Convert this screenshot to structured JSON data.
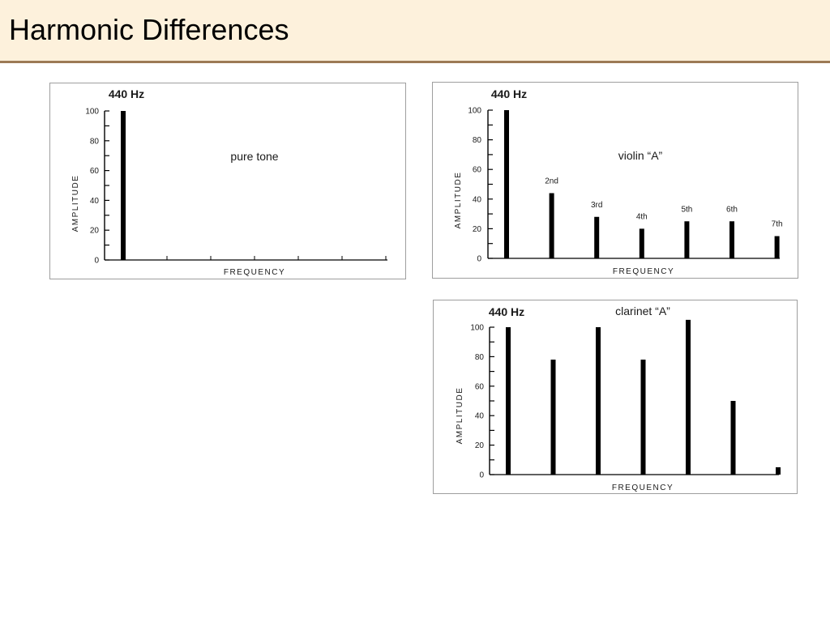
{
  "slide": {
    "title": "Harmonic Differences"
  },
  "colors": {
    "title_bg": "#fdf1dc",
    "title_rule": "#9c7a55",
    "ink": "#000000",
    "panel_border": "#9e9e9e"
  },
  "chart_data": [
    {
      "type": "bar",
      "title": "440 Hz",
      "annotation": "pure tone",
      "xlabel": "FREQUENCY",
      "ylabel": "AMPLITUDE",
      "ylim": [
        0,
        100
      ],
      "yticks": [
        "0",
        "20",
        "40",
        "60",
        "80",
        "100"
      ],
      "values": [
        100
      ],
      "bar_labels": [
        ""
      ],
      "x_ticks": 6
    },
    {
      "type": "bar",
      "title": "440 Hz",
      "annotation": "violin “A”",
      "xlabel": "FREQUENCY",
      "ylabel": "AMPLITUDE",
      "ylim": [
        0,
        100
      ],
      "yticks": [
        "0",
        "20",
        "40",
        "60",
        "80",
        "100"
      ],
      "values": [
        100,
        44,
        28,
        20,
        25,
        25,
        15
      ],
      "bar_labels": [
        "",
        "2nd",
        "3rd",
        "4th",
        "5th",
        "6th",
        "7th"
      ]
    },
    {
      "type": "bar",
      "title": "440 Hz",
      "annotation": "clarinet “A”",
      "xlabel": "FREQUENCY",
      "ylabel": "AMPLITUDE",
      "ylim": [
        0,
        100
      ],
      "yticks": [
        "0",
        "20",
        "40",
        "60",
        "80",
        "100"
      ],
      "values": [
        100,
        78,
        100,
        78,
        105,
        50,
        5
      ],
      "bar_labels": [
        "",
        "",
        "",
        "",
        "",
        "",
        ""
      ]
    }
  ]
}
